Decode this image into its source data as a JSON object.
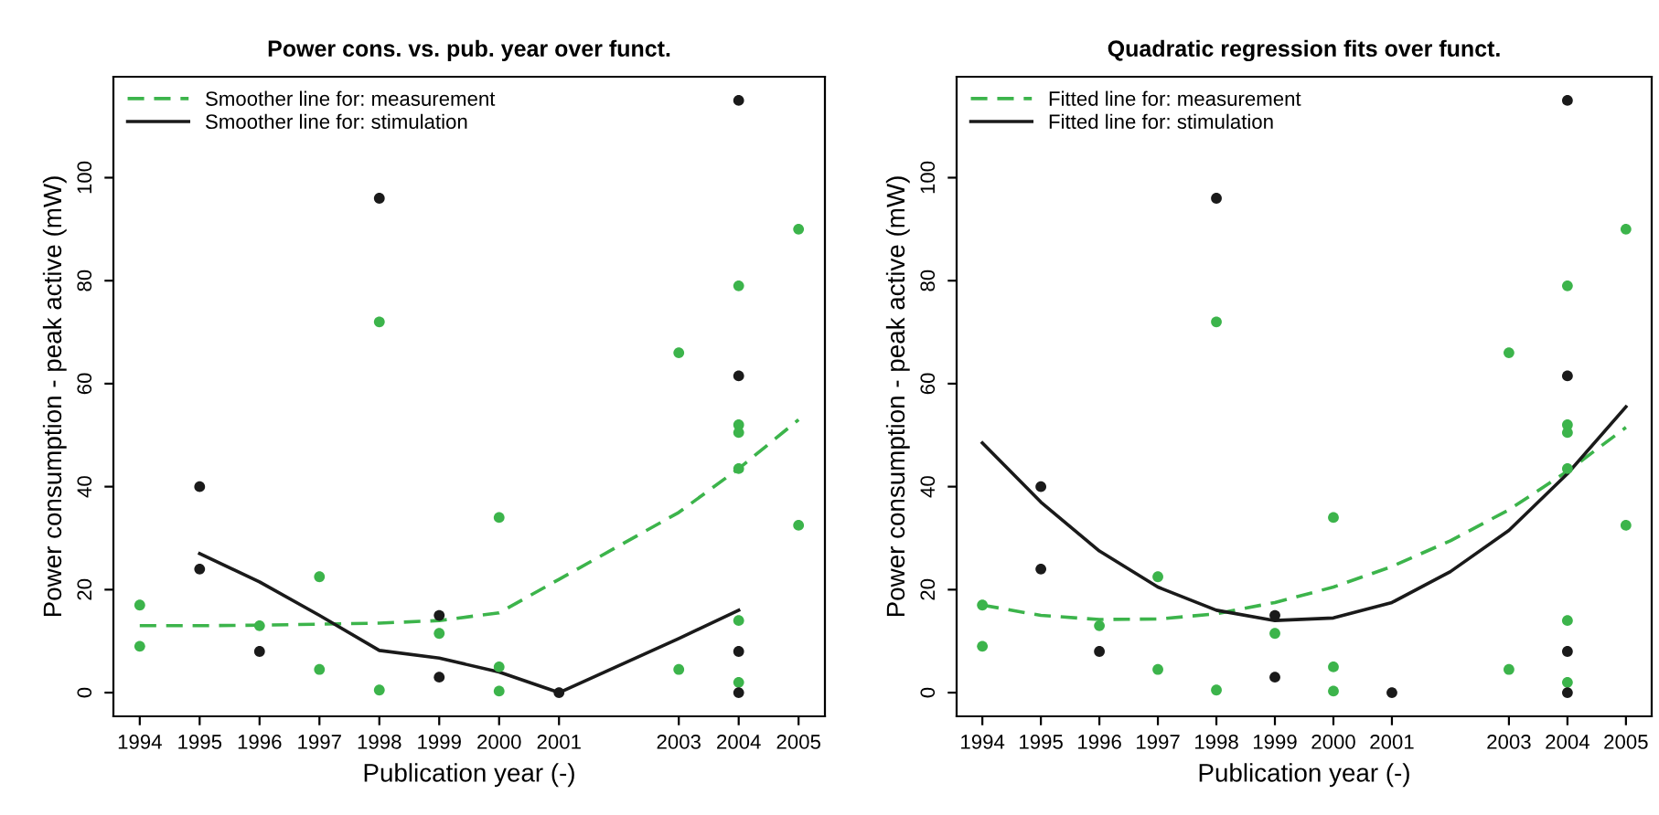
{
  "chart_data": [
    {
      "type": "scatter",
      "title": "Power cons. vs. pub. year over funct.",
      "xlabel": "Publication year (-)",
      "ylabel": "Power consumption - peak active (mW)",
      "xlim": [
        1993.56,
        2005.44
      ],
      "ylim": [
        -4.6,
        119.6
      ],
      "xticks": [
        1994,
        1995,
        1996,
        1997,
        1998,
        1999,
        2000,
        2001,
        2003,
        2004,
        2005
      ],
      "yticks": [
        0,
        20,
        40,
        60,
        80,
        100
      ],
      "grid": false,
      "legend": "top left",
      "marker": "circle",
      "series": [
        {
          "color": "#3cb44b",
          "x": [
            1994,
            1994,
            1996,
            1997,
            1997,
            1998,
            1998,
            1999,
            2000,
            2000,
            2000,
            2003,
            2003,
            2004,
            2004,
            2004,
            2004,
            2004,
            2004,
            2005,
            2005
          ],
          "values": [
            17,
            9,
            13,
            22.5,
            4.5,
            72,
            0.5,
            11.5,
            34,
            5,
            0.3,
            66,
            4.5,
            79,
            52,
            50.5,
            43.5,
            14,
            2,
            90,
            32.5
          ]
        },
        {
          "color": "#1a1a1a",
          "x": [
            1995,
            1995,
            1996,
            1998,
            1999,
            1999,
            2001,
            2004,
            2004,
            2004,
            2004
          ],
          "values": [
            40,
            24,
            8,
            96,
            15,
            3,
            0,
            115,
            61.5,
            8,
            0
          ]
        },
        {
          "type": "line",
          "name": "Smoother line for: measurement",
          "color": "#3cb44b",
          "line_style": "dashed",
          "marker": "none",
          "x": [
            1994,
            1995,
            1996,
            1997,
            1998,
            1999,
            2000,
            2001,
            2002,
            2003,
            2004,
            2005
          ],
          "values": [
            13,
            13,
            13.1,
            13.3,
            13.5,
            14,
            15.5,
            22,
            28.5,
            35,
            43.5,
            53
          ]
        },
        {
          "type": "line",
          "name": "Smoother line for: stimulation",
          "color": "#1a1a1a",
          "line_style": "solid",
          "marker": "none",
          "x": [
            1995,
            1996,
            1997,
            1998,
            1999,
            2000,
            2001,
            2003,
            2004
          ],
          "values": [
            27,
            21.5,
            15,
            8.2,
            6.7,
            4,
            0,
            10.5,
            16
          ]
        }
      ]
    },
    {
      "type": "scatter",
      "title": "Quadratic regression fits over funct.",
      "xlabel": "Publication year (-)",
      "ylabel": "Power consumption - peak active (mW)",
      "xlim": [
        1993.56,
        2005.44
      ],
      "ylim": [
        -4.6,
        119.6
      ],
      "xticks": [
        1994,
        1995,
        1996,
        1997,
        1998,
        1999,
        2000,
        2001,
        2003,
        2004,
        2005
      ],
      "yticks": [
        0,
        20,
        40,
        60,
        80,
        100
      ],
      "grid": false,
      "legend": "top left",
      "marker": "circle",
      "series": [
        {
          "color": "#3cb44b",
          "x": [
            1994,
            1994,
            1996,
            1997,
            1997,
            1998,
            1998,
            1999,
            2000,
            2000,
            2000,
            2003,
            2003,
            2004,
            2004,
            2004,
            2004,
            2004,
            2004,
            2005,
            2005
          ],
          "values": [
            17,
            9,
            13,
            22.5,
            4.5,
            72,
            0.5,
            11.5,
            34,
            5,
            0.3,
            66,
            4.5,
            79,
            52,
            50.5,
            43.5,
            14,
            2,
            90,
            32.5
          ]
        },
        {
          "color": "#1a1a1a",
          "x": [
            1995,
            1995,
            1996,
            1998,
            1999,
            1999,
            2001,
            2004,
            2004,
            2004,
            2004
          ],
          "values": [
            40,
            24,
            8,
            96,
            15,
            3,
            0,
            115,
            61.5,
            8,
            0
          ]
        },
        {
          "type": "line",
          "name": "Fitted line for: measurement",
          "color": "#3cb44b",
          "line_style": "dashed",
          "marker": "none",
          "x": [
            1994,
            1995,
            1996,
            1997,
            1998,
            1999,
            2000,
            2001,
            2002,
            2003,
            2004,
            2005
          ],
          "values": [
            17,
            15,
            14.2,
            14.3,
            15.3,
            17.5,
            20.5,
            24.5,
            29.5,
            35.5,
            43,
            51.5
          ]
        },
        {
          "type": "line",
          "name": "Fitted line for: stimulation",
          "color": "#1a1a1a",
          "line_style": "solid",
          "marker": "none",
          "x": [
            1994,
            1995,
            1996,
            1997,
            1998,
            1999,
            2000,
            2001,
            2002,
            2003,
            2004,
            2005
          ],
          "values": [
            48.5,
            37,
            27.5,
            20.5,
            16,
            14,
            14.5,
            17.5,
            23.5,
            31.5,
            42.5,
            55.5
          ]
        }
      ]
    }
  ]
}
